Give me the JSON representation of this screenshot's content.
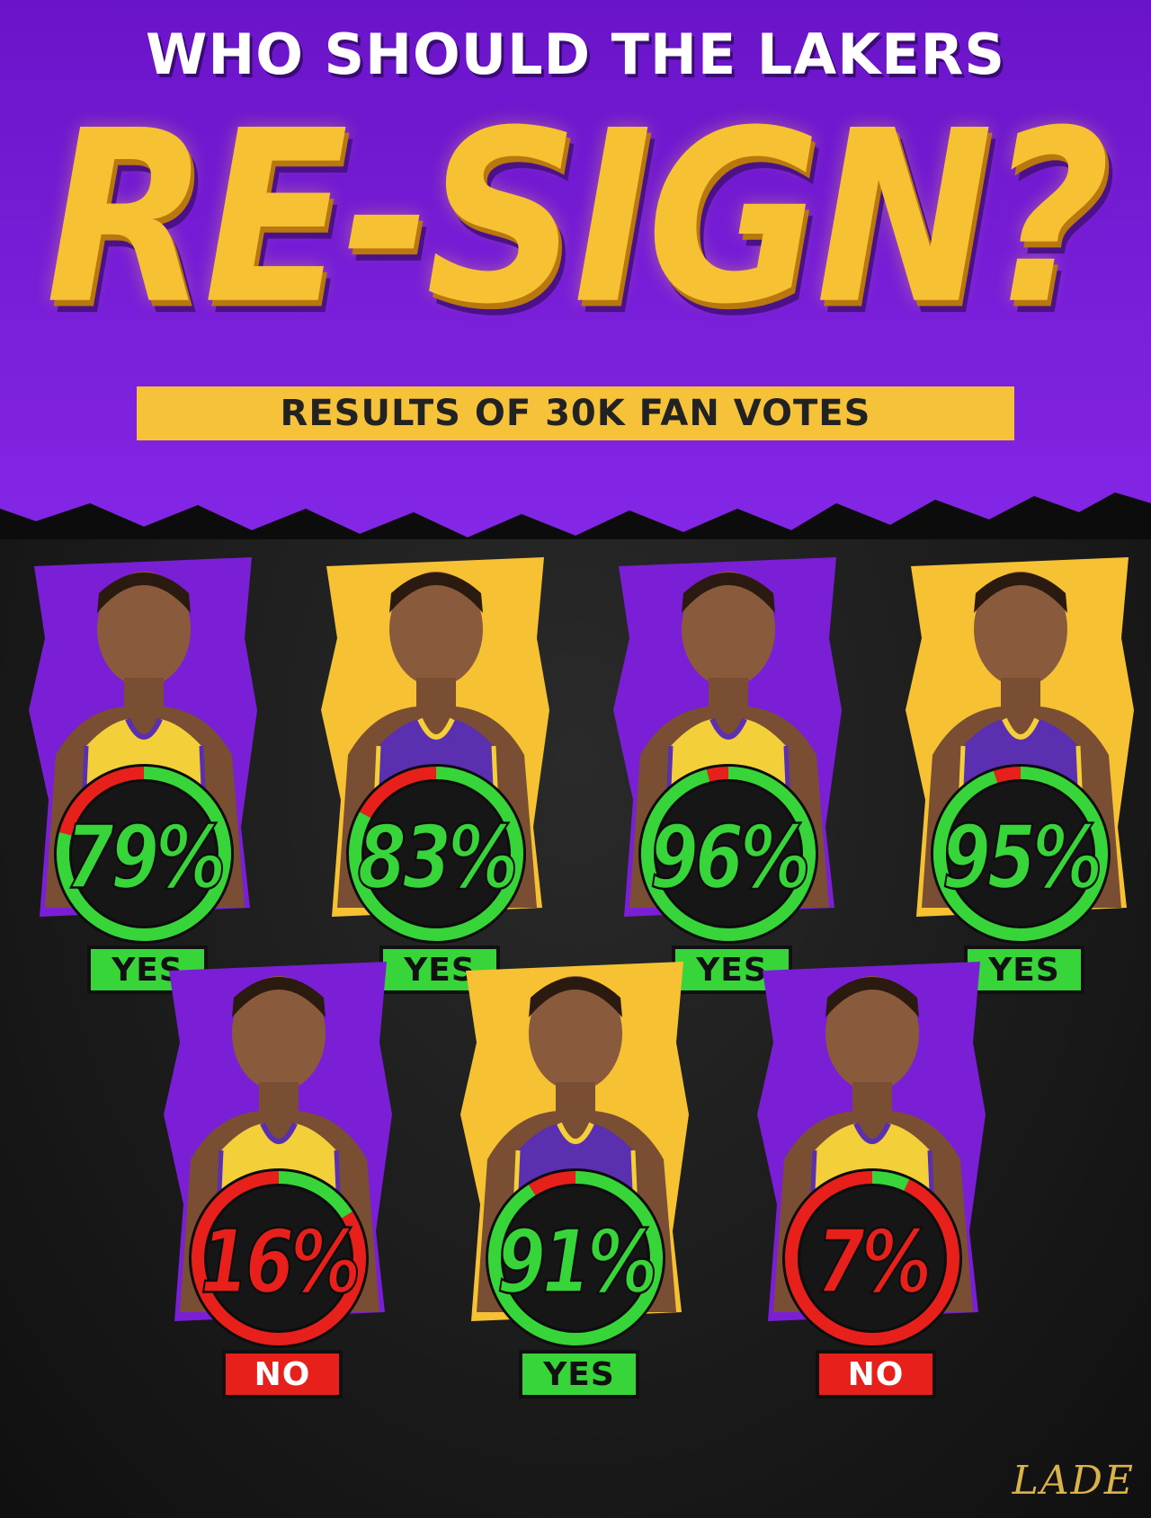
{
  "header": {
    "headline": "WHO SHOULD THE LAKERS",
    "title": "RE-SIGN?",
    "subtitle": "RESULTS OF 30K FAN VOTES"
  },
  "colors": {
    "purple": "#7a1fd6",
    "gold": "#f6c233",
    "yes_green": "#37d53a",
    "no_red": "#e8201b",
    "background": "#141414"
  },
  "players": [
    {
      "percent": 79,
      "percent_label": "79%",
      "verdict": "YES",
      "jersey": "gold",
      "backdrop": "purple"
    },
    {
      "percent": 83,
      "percent_label": "83%",
      "verdict": "YES",
      "jersey": "purple",
      "backdrop": "gold"
    },
    {
      "percent": 96,
      "percent_label": "96%",
      "verdict": "YES",
      "jersey": "gold",
      "backdrop": "purple"
    },
    {
      "percent": 95,
      "percent_label": "95%",
      "verdict": "YES",
      "jersey": "purple",
      "backdrop": "gold"
    },
    {
      "percent": 16,
      "percent_label": "16%",
      "verdict": "NO",
      "jersey": "gold",
      "backdrop": "purple"
    },
    {
      "percent": 91,
      "percent_label": "91%",
      "verdict": "YES",
      "jersey": "purple",
      "backdrop": "gold"
    },
    {
      "percent": 7,
      "percent_label": "7%",
      "verdict": "NO",
      "jersey": "gold",
      "backdrop": "purple"
    }
  ],
  "branding": {
    "logo": "LADE"
  }
}
